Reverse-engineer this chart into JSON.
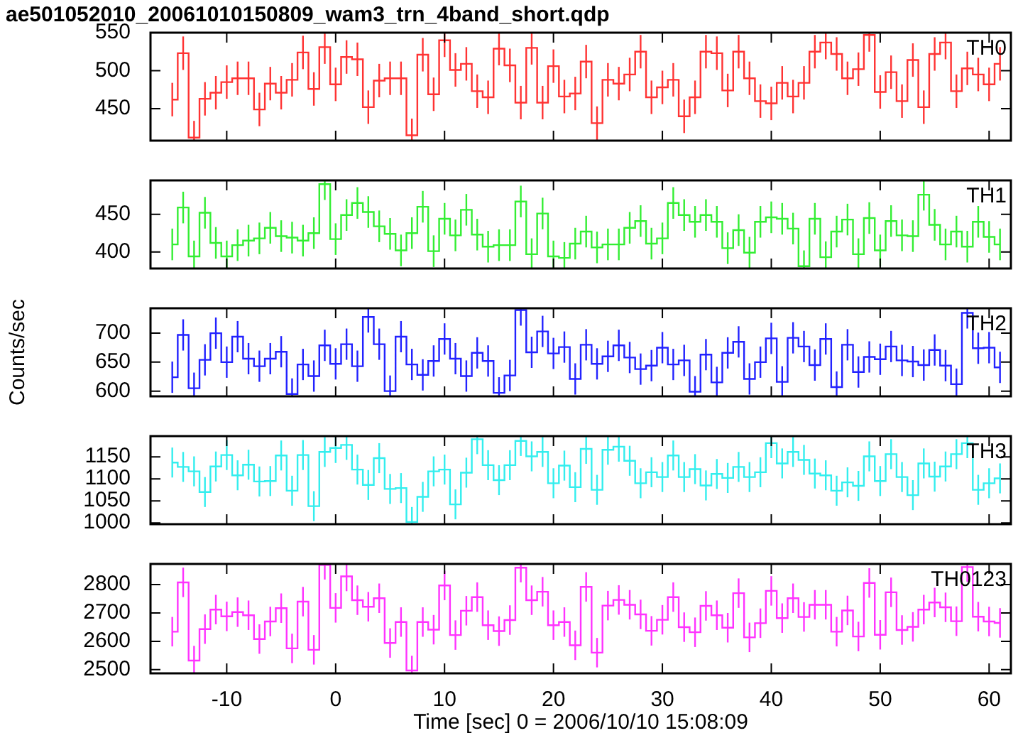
{
  "chart_data": [
    {
      "type": "step",
      "title": "ae501052010_20061010150809_wam3_trn_4band_short.qdp",
      "tick_labels": "y",
      "xlim": [
        -17,
        62
      ],
      "xticks": [
        -10,
        0,
        10,
        20,
        30,
        40,
        50,
        60
      ],
      "ylim": [
        408,
        550
      ],
      "yticks": [
        450,
        500,
        550
      ],
      "x": [
        -15,
        -14,
        -13,
        -12,
        -11,
        -10,
        -9,
        -8,
        -7,
        -6,
        -5,
        -4,
        -3,
        -2,
        -1,
        0,
        1,
        2,
        3,
        4,
        5,
        6,
        7,
        8,
        9,
        10,
        11,
        12,
        13,
        14,
        15,
        16,
        17,
        18,
        19,
        20,
        21,
        22,
        23,
        24,
        25,
        26,
        27,
        28,
        29,
        30,
        31,
        32,
        33,
        34,
        35,
        36,
        37,
        38,
        39,
        40,
        41,
        42,
        43,
        44,
        45,
        46,
        47,
        48,
        49,
        50,
        51,
        52,
        53,
        54,
        55,
        56,
        57,
        58,
        59,
        60,
        61
      ],
      "series": [
        {
          "name": "TH0",
          "color": "#ff3333",
          "values": [
            462,
            523,
            412,
            463,
            471,
            485,
            490,
            490,
            449,
            483,
            471,
            488,
            524,
            476,
            531,
            482,
            518,
            515,
            452,
            487,
            490,
            490,
            415,
            521,
            469,
            540,
            501,
            509,
            473,
            465,
            529,
            507,
            458,
            530,
            458,
            506,
            466,
            470,
            512,
            431,
            488,
            483,
            495,
            525,
            465,
            478,
            488,
            440,
            465,
            525,
            523,
            474,
            525,
            490,
            460,
            457,
            484,
            466,
            484,
            525,
            537,
            522,
            490,
            502,
            547,
            472,
            498,
            460,
            514,
            452,
            522,
            537,
            473,
            503,
            495,
            482,
            509
          ],
          "errors": [
            22,
            22,
            22,
            22,
            22,
            22,
            22,
            22,
            22,
            22,
            22,
            22,
            22,
            22,
            22,
            22,
            22,
            22,
            22,
            22,
            22,
            22,
            22,
            22,
            22,
            22,
            22,
            22,
            22,
            22,
            22,
            22,
            22,
            22,
            22,
            22,
            22,
            22,
            22,
            22,
            22,
            22,
            22,
            22,
            22,
            22,
            22,
            22,
            22,
            22,
            22,
            22,
            22,
            22,
            22,
            22,
            22,
            22,
            22,
            22,
            22,
            22,
            22,
            22,
            22,
            22,
            22,
            22,
            22,
            22,
            22,
            22,
            22,
            22,
            22,
            22,
            22
          ]
        }
      ]
    },
    {
      "type": "step",
      "tick_labels": "y",
      "xlim": [
        -17,
        62
      ],
      "xticks": [
        -10,
        0,
        10,
        20,
        30,
        40,
        50,
        60
      ],
      "ylim": [
        378,
        495
      ],
      "yticks": [
        400,
        450
      ],
      "x": [
        -15,
        -14,
        -13,
        -12,
        -11,
        -10,
        -9,
        -8,
        -7,
        -6,
        -5,
        -4,
        -3,
        -2,
        -1,
        0,
        1,
        2,
        3,
        4,
        5,
        6,
        7,
        8,
        9,
        10,
        11,
        12,
        13,
        14,
        15,
        16,
        17,
        18,
        19,
        20,
        21,
        22,
        23,
        24,
        25,
        26,
        27,
        28,
        29,
        30,
        31,
        32,
        33,
        34,
        35,
        36,
        37,
        38,
        39,
        40,
        41,
        42,
        43,
        44,
        45,
        46,
        47,
        48,
        49,
        50,
        51,
        52,
        53,
        54,
        55,
        56,
        57,
        58,
        59,
        60,
        61
      ],
      "series": [
        {
          "name": "TH1",
          "color": "#33ee33",
          "values": [
            410,
            459,
            394,
            452,
            412,
            394,
            409,
            415,
            418,
            432,
            421,
            419,
            415,
            425,
            490,
            417,
            449,
            465,
            453,
            434,
            424,
            402,
            425,
            460,
            401,
            444,
            422,
            456,
            423,
            407,
            409,
            409,
            467,
            397,
            451,
            394,
            392,
            411,
            427,
            406,
            410,
            410,
            432,
            441,
            411,
            418,
            465,
            449,
            440,
            449,
            440,
            405,
            429,
            399,
            440,
            446,
            444,
            431,
            381,
            444,
            393,
            427,
            443,
            397,
            445,
            402,
            441,
            422,
            421,
            476,
            436,
            410,
            427,
            407,
            440,
            420,
            410
          ],
          "errors": [
            21,
            21,
            21,
            21,
            21,
            21,
            21,
            21,
            21,
            21,
            21,
            21,
            21,
            21,
            21,
            21,
            21,
            21,
            21,
            21,
            21,
            21,
            21,
            21,
            21,
            21,
            21,
            21,
            21,
            21,
            21,
            21,
            21,
            21,
            21,
            21,
            21,
            21,
            21,
            21,
            21,
            21,
            21,
            21,
            21,
            21,
            21,
            21,
            21,
            21,
            21,
            21,
            21,
            21,
            21,
            21,
            21,
            21,
            21,
            21,
            21,
            21,
            21,
            21,
            21,
            21,
            21,
            21,
            21,
            21,
            21,
            21,
            21,
            21,
            21,
            21,
            21
          ]
        }
      ]
    },
    {
      "type": "step",
      "tick_labels": "y",
      "ylabel": "Counts/sec",
      "xlim": [
        -17,
        62
      ],
      "xticks": [
        -10,
        0,
        10,
        20,
        30,
        40,
        50,
        60
      ],
      "ylim": [
        591,
        743
      ],
      "yticks": [
        600,
        650,
        700
      ],
      "x": [
        -15,
        -14,
        -13,
        -12,
        -11,
        -10,
        -9,
        -8,
        -7,
        -6,
        -5,
        -4,
        -3,
        -2,
        -1,
        0,
        1,
        2,
        3,
        4,
        5,
        6,
        7,
        8,
        9,
        10,
        11,
        12,
        13,
        14,
        15,
        16,
        17,
        18,
        19,
        20,
        21,
        22,
        23,
        24,
        25,
        26,
        27,
        28,
        29,
        30,
        31,
        32,
        33,
        34,
        35,
        36,
        37,
        38,
        39,
        40,
        41,
        42,
        43,
        44,
        45,
        46,
        47,
        48,
        49,
        50,
        51,
        52,
        53,
        54,
        55,
        56,
        57,
        58,
        59,
        60,
        61
      ],
      "series": [
        {
          "name": "TH2",
          "color": "#2222ff",
          "values": [
            624,
            697,
            605,
            654,
            700,
            650,
            694,
            656,
            643,
            656,
            668,
            595,
            646,
            626,
            679,
            647,
            681,
            643,
            728,
            681,
            600,
            694,
            646,
            628,
            652,
            690,
            656,
            626,
            666,
            652,
            597,
            627,
            740,
            667,
            703,
            665,
            676,
            621,
            680,
            647,
            660,
            679,
            658,
            638,
            644,
            675,
            646,
            653,
            599,
            663,
            615,
            666,
            685,
            621,
            650,
            691,
            616,
            692,
            677,
            645,
            690,
            607,
            680,
            633,
            659,
            655,
            677,
            653,
            651,
            645,
            671,
            644,
            612,
            735,
            674,
            675,
            641
          ],
          "errors": [
            27,
            27,
            27,
            27,
            27,
            27,
            27,
            27,
            27,
            27,
            27,
            27,
            27,
            27,
            27,
            27,
            27,
            27,
            27,
            27,
            27,
            27,
            27,
            27,
            27,
            27,
            27,
            27,
            27,
            27,
            27,
            27,
            27,
            27,
            27,
            27,
            27,
            27,
            27,
            27,
            27,
            27,
            27,
            27,
            27,
            27,
            27,
            27,
            27,
            27,
            27,
            27,
            27,
            27,
            27,
            27,
            27,
            27,
            27,
            27,
            27,
            27,
            27,
            27,
            27,
            27,
            27,
            27,
            27,
            27,
            27,
            27,
            27,
            27,
            27,
            27,
            27
          ]
        }
      ]
    },
    {
      "type": "step",
      "tick_labels": "y",
      "xlim": [
        -17,
        62
      ],
      "xticks": [
        -10,
        0,
        10,
        20,
        30,
        40,
        50,
        60
      ],
      "ylim": [
        997,
        1197
      ],
      "yticks": [
        1000,
        1050,
        1100,
        1150
      ],
      "x": [
        -15,
        -14,
        -13,
        -12,
        -11,
        -10,
        -9,
        -8,
        -7,
        -6,
        -5,
        -4,
        -3,
        -2,
        -1,
        0,
        1,
        2,
        3,
        4,
        5,
        6,
        7,
        8,
        9,
        10,
        11,
        12,
        13,
        14,
        15,
        16,
        17,
        18,
        19,
        20,
        21,
        22,
        23,
        24,
        25,
        26,
        27,
        28,
        29,
        30,
        31,
        32,
        33,
        34,
        35,
        36,
        37,
        38,
        39,
        40,
        41,
        42,
        43,
        44,
        45,
        46,
        47,
        48,
        49,
        50,
        51,
        52,
        53,
        54,
        55,
        56,
        57,
        58,
        59,
        60,
        61
      ],
      "series": [
        {
          "name": "TH3",
          "color": "#33eeee",
          "values": [
            1137,
            1127,
            1117,
            1070,
            1128,
            1154,
            1108,
            1132,
            1094,
            1095,
            1153,
            1073,
            1154,
            1038,
            1161,
            1170,
            1177,
            1121,
            1086,
            1147,
            1077,
            1079,
            1002,
            1059,
            1117,
            1121,
            1042,
            1114,
            1190,
            1131,
            1097,
            1131,
            1186,
            1151,
            1161,
            1090,
            1130,
            1081,
            1168,
            1075,
            1166,
            1173,
            1141,
            1090,
            1115,
            1104,
            1153,
            1104,
            1122,
            1085,
            1111,
            1102,
            1127,
            1104,
            1115,
            1181,
            1135,
            1161,
            1143,
            1112,
            1108,
            1073,
            1092,
            1084,
            1151,
            1095,
            1156,
            1104,
            1063,
            1135,
            1105,
            1128,
            1156,
            1181,
            1075,
            1090,
            1101
          ],
          "errors": [
            34,
            34,
            34,
            34,
            34,
            34,
            34,
            34,
            34,
            34,
            34,
            34,
            34,
            34,
            34,
            34,
            34,
            34,
            34,
            34,
            34,
            34,
            34,
            34,
            34,
            34,
            34,
            34,
            34,
            34,
            34,
            34,
            34,
            34,
            34,
            34,
            34,
            34,
            34,
            34,
            34,
            34,
            34,
            34,
            34,
            34,
            34,
            34,
            34,
            34,
            34,
            34,
            34,
            34,
            34,
            34,
            34,
            34,
            34,
            34,
            34,
            34,
            34,
            34,
            34,
            34,
            34,
            34,
            34,
            34,
            34,
            34,
            34,
            34,
            34,
            34,
            34
          ]
        }
      ]
    },
    {
      "type": "step",
      "xlabel": "Time [sec] 0 = 2006/10/10 15:08:09",
      "xlim": [
        -17,
        62
      ],
      "xticks": [
        -10,
        0,
        10,
        20,
        30,
        40,
        50,
        60
      ],
      "ylim": [
        2487,
        2873
      ],
      "yticks": [
        2500,
        2600,
        2700,
        2800
      ],
      "x": [
        -15,
        -14,
        -13,
        -12,
        -11,
        -10,
        -9,
        -8,
        -7,
        -6,
        -5,
        -4,
        -3,
        -2,
        -1,
        0,
        1,
        2,
        3,
        4,
        5,
        6,
        7,
        8,
        9,
        10,
        11,
        12,
        13,
        14,
        15,
        16,
        17,
        18,
        19,
        20,
        21,
        22,
        23,
        24,
        25,
        26,
        27,
        28,
        29,
        30,
        31,
        32,
        33,
        34,
        35,
        36,
        37,
        38,
        39,
        40,
        41,
        42,
        43,
        44,
        45,
        46,
        47,
        48,
        49,
        50,
        51,
        52,
        53,
        54,
        55,
        56,
        57,
        58,
        59,
        60,
        61
      ],
      "series": [
        {
          "name": "TH0123",
          "color": "#ff33ff",
          "values": [
            2634,
            2808,
            2532,
            2643,
            2712,
            2688,
            2703,
            2692,
            2608,
            2670,
            2717,
            2575,
            2740,
            2570,
            2870,
            2718,
            2829,
            2745,
            2722,
            2752,
            2594,
            2668,
            2497,
            2668,
            2641,
            2797,
            2622,
            2708,
            2756,
            2657,
            2636,
            2675,
            2860,
            2745,
            2775,
            2657,
            2668,
            2586,
            2792,
            2560,
            2726,
            2746,
            2729,
            2695,
            2637,
            2676,
            2756,
            2650,
            2632,
            2725,
            2692,
            2648,
            2770,
            2614,
            2664,
            2778,
            2682,
            2752,
            2686,
            2729,
            2729,
            2634,
            2709,
            2617,
            2806,
            2623,
            2773,
            2640,
            2651,
            2712,
            2737,
            2720,
            2671,
            2862,
            2687,
            2670,
            2665
          ],
          "errors": [
            52,
            52,
            52,
            52,
            52,
            52,
            52,
            52,
            52,
            52,
            52,
            52,
            52,
            52,
            52,
            52,
            52,
            52,
            52,
            52,
            52,
            52,
            52,
            52,
            52,
            52,
            52,
            52,
            52,
            52,
            52,
            52,
            52,
            52,
            52,
            52,
            52,
            52,
            52,
            52,
            52,
            52,
            52,
            52,
            52,
            52,
            52,
            52,
            52,
            52,
            52,
            52,
            52,
            52,
            52,
            52,
            52,
            52,
            52,
            52,
            52,
            52,
            52,
            52,
            52,
            52,
            52,
            52,
            52,
            52,
            52,
            52,
            52,
            52,
            52,
            52,
            52
          ]
        }
      ]
    }
  ]
}
